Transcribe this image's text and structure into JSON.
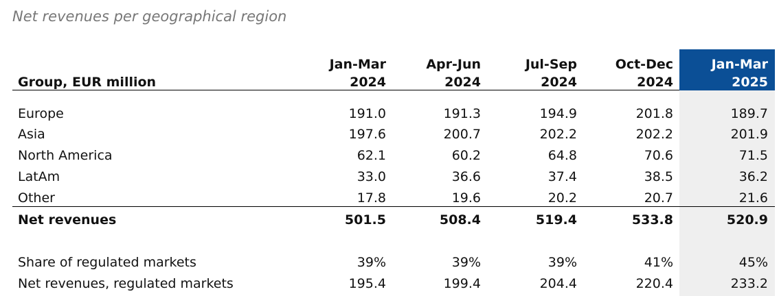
{
  "title": "Net revenues per geographical region",
  "table": {
    "header": {
      "label": "Group, EUR million",
      "columns": [
        {
          "period": "Jan-Mar",
          "year": "2024"
        },
        {
          "period": "Apr-Jun",
          "year": "2024"
        },
        {
          "period": "Jul-Sep",
          "year": "2024"
        },
        {
          "period": "Oct-Dec",
          "year": "2024"
        },
        {
          "period": "Jan-Mar",
          "year": "2025"
        }
      ]
    },
    "rows": [
      {
        "label": "Europe",
        "values": [
          "191.0",
          "191.3",
          "194.9",
          "201.8",
          "189.7"
        ]
      },
      {
        "label": "Asia",
        "values": [
          "197.6",
          "200.7",
          "202.2",
          "202.2",
          "201.9"
        ]
      },
      {
        "label": "North America",
        "values": [
          "62.1",
          "60.2",
          "64.8",
          "70.6",
          "71.5"
        ]
      },
      {
        "label": "LatAm",
        "values": [
          "33.0",
          "36.6",
          "37.4",
          "38.5",
          "36.2"
        ]
      },
      {
        "label": "Other",
        "values": [
          "17.8",
          "19.6",
          "20.2",
          "20.7",
          "21.6"
        ]
      }
    ],
    "total": {
      "label": "Net revenues",
      "values": [
        "501.5",
        "508.4",
        "519.4",
        "533.8",
        "520.9"
      ]
    },
    "memo": [
      {
        "label": "Share of regulated markets",
        "values": [
          "39%",
          "39%",
          "39%",
          "41%",
          "45%"
        ]
      },
      {
        "label": "Net revenues, regulated markets",
        "values": [
          "195.4",
          "199.4",
          "204.4",
          "220.4",
          "233.2"
        ]
      }
    ]
  }
}
